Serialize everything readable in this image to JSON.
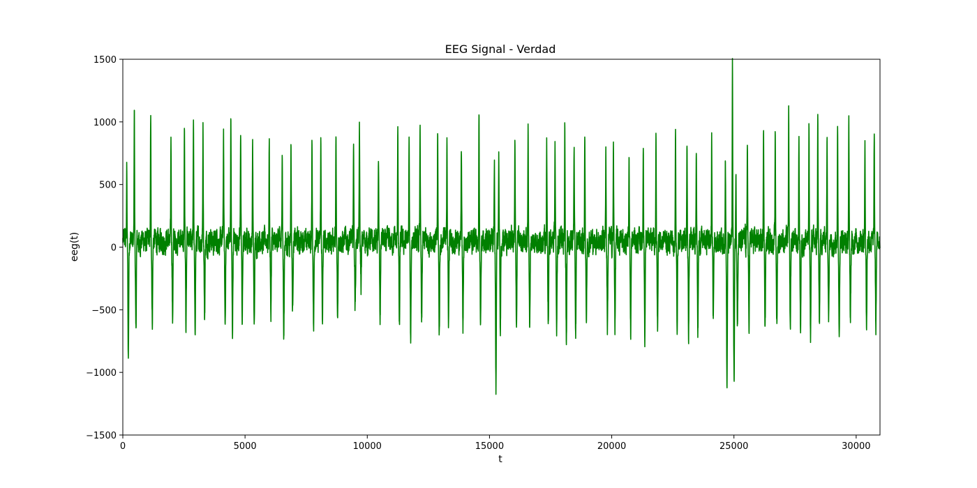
{
  "chart_data": {
    "type": "line",
    "title": "EEG Signal - Verdad",
    "xlabel": "t",
    "ylabel": "eeg(t)",
    "xlim": [
      0,
      30975
    ],
    "ylim": [
      -1500,
      1500
    ],
    "xticks": [
      0,
      5000,
      10000,
      15000,
      20000,
      25000,
      30000
    ],
    "xtick_labels": [
      "0",
      "5000",
      "10000",
      "15000",
      "20000",
      "25000",
      "30000"
    ],
    "yticks": [
      -1500,
      -1000,
      -500,
      0,
      500,
      1000,
      1500
    ],
    "ytick_labels": [
      "−1500",
      "−1000",
      "−500",
      "0",
      "500",
      "1000",
      "1500"
    ],
    "grid": false,
    "line_color": "#008000",
    "series": [
      {
        "values": {
          "baseline_band": [
            -120,
            220
          ],
          "spike_times": [
            170,
            480,
            1150,
            1980,
            2530,
            2900,
            3290,
            4130,
            4430,
            4830,
            5320,
            6000,
            6530,
            6890,
            7750,
            8110,
            8730,
            9450,
            9690,
            10470,
            11260,
            11720,
            12170,
            12890,
            13270,
            13860,
            14580,
            15210,
            15390,
            16050,
            16590,
            17350,
            17690,
            18090,
            18470,
            18910,
            19770,
            20080,
            20720,
            21300,
            21820,
            22620,
            23090,
            23470,
            24100,
            24660,
            24950,
            25090,
            25560,
            26220,
            26700,
            27250,
            27670,
            28080,
            28440,
            28820,
            29250,
            29710,
            30370,
            30750
          ],
          "spike_peaks": [
            640,
            1150,
            1030,
            905,
            970,
            1040,
            975,
            930,
            1055,
            955,
            840,
            875,
            835,
            820,
            870,
            820,
            880,
            885,
            990,
            750,
            1020,
            870,
            1000,
            870,
            950,
            815,
            1015,
            720,
            725,
            825,
            1000,
            840,
            835,
            985,
            835,
            895,
            820,
            805,
            790,
            875,
            875,
            875,
            870,
            855,
            870,
            715,
            1460,
            610,
            900,
            1015,
            870,
            1015,
            865,
            950,
            1010,
            960,
            860,
            930,
            875,
            860
          ],
          "spike_troughs": [
            -860,
            -720,
            -575,
            -585,
            -670,
            -660,
            -580,
            -595,
            -650,
            -580,
            -670,
            -555,
            -760,
            -495,
            -655,
            -615,
            -580,
            -480,
            -280,
            -605,
            -655,
            -710,
            -630,
            -685,
            -580,
            -670,
            -640,
            -1125,
            -655,
            -625,
            -700,
            -660,
            -625,
            -740,
            -660,
            -580,
            -620,
            -625,
            -665,
            -690,
            -640,
            -620,
            -690,
            -640,
            -580,
            -1125,
            -1060,
            -605,
            -615,
            -620,
            -655,
            -640,
            -665,
            -695,
            -650,
            -595,
            -650,
            -600,
            -625,
            -635
          ]
        }
      }
    ]
  }
}
